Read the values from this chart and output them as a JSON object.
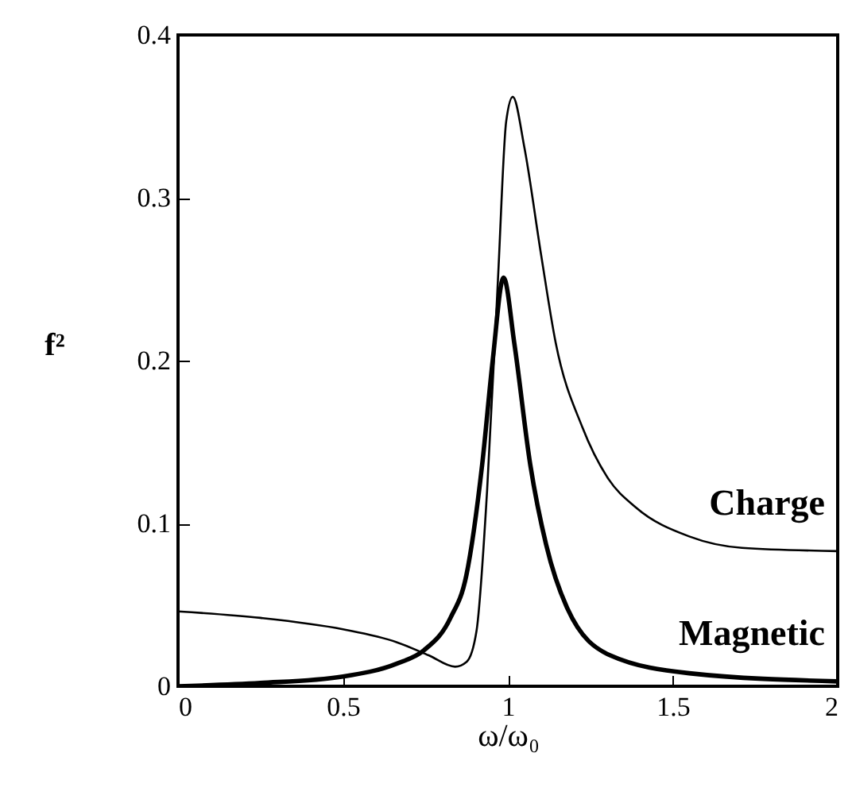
{
  "chart_data": {
    "type": "line",
    "xlabel": "ω/ω₀",
    "ylabel": "f²",
    "xlim": [
      0,
      2
    ],
    "xticks": [
      0,
      0.5,
      1,
      1.5,
      2
    ],
    "ylim": [
      0,
      0.4
    ],
    "yticks": [
      0,
      0.1,
      0.2,
      0.3,
      0.4
    ],
    "grid": false,
    "line_style": "solid",
    "marker": "none",
    "series": [
      {
        "name": "Charge",
        "color": "#000000",
        "x": [
          0,
          0.25,
          0.5,
          0.664,
          0.76,
          0.84,
          0.875,
          0.905,
          0.937,
          0.97,
          0.995,
          1.015,
          1.05,
          1.1,
          1.145,
          1.226,
          1.306,
          1.387,
          1.55,
          1.71,
          2
        ],
        "values": [
          0.046,
          0.042,
          0.035,
          0.027,
          0.019,
          0.012,
          0.015,
          0.034,
          0.12,
          0.25,
          0.347,
          0.362,
          0.331,
          0.266,
          0.211,
          0.159,
          0.127,
          0.11,
          0.092,
          0.085,
          0.083
        ]
      },
      {
        "name": "Magnetic",
        "color": "#000000",
        "x": [
          0,
          0.25,
          0.5,
          0.664,
          0.745,
          0.826,
          0.874,
          0.922,
          0.954,
          0.987,
          1.02,
          1.068,
          1.116,
          1.18,
          1.31,
          1.55,
          2
        ],
        "values": [
          0,
          0.002,
          0.006,
          0.014,
          0.022,
          0.042,
          0.068,
          0.136,
          0.2,
          0.251,
          0.21,
          0.136,
          0.087,
          0.048,
          0.019,
          0.008,
          0.003
        ]
      }
    ]
  }
}
